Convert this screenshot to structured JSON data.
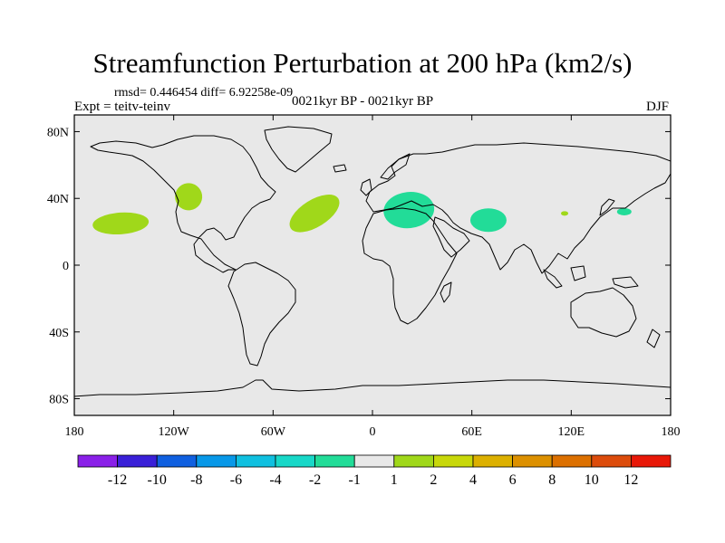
{
  "title": "Streamfunction Perturbation at 200 hPa (km2/s)",
  "stats": "rmsd= 0.446454 diff= 6.92258e-09",
  "experiment": "Expt = teitv-teinv",
  "period": "0021kyr BP - 0021kyr BP",
  "season": "DJF",
  "map": {
    "projection": "cylindrical equidistant",
    "lon_range": [
      -180,
      180
    ],
    "lat_range": [
      -90,
      90
    ],
    "background_color": "#e8e8e8",
    "lat_ticks": [
      {
        "value": 80,
        "label": "80N"
      },
      {
        "value": 40,
        "label": "40N"
      },
      {
        "value": 0,
        "label": "0"
      },
      {
        "value": -40,
        "label": "40S"
      },
      {
        "value": -80,
        "label": "80S"
      }
    ],
    "lon_ticks": [
      {
        "value": -180,
        "label": "180"
      },
      {
        "value": -120,
        "label": "120W"
      },
      {
        "value": -60,
        "label": "60W"
      },
      {
        "value": 0,
        "label": "0"
      },
      {
        "value": 60,
        "label": "60E"
      },
      {
        "value": 120,
        "label": "120E"
      },
      {
        "value": 180,
        "label": "180"
      }
    ],
    "anomalies": [
      {
        "name": "north-pacific",
        "lon": -152,
        "lat": 25,
        "value": 1.5,
        "color": "#a0d81a"
      },
      {
        "name": "western-north-america",
        "lon": -111,
        "lat": 41,
        "value": 1.5,
        "color": "#a0d81a"
      },
      {
        "name": "north-atlantic",
        "lon": -35,
        "lat": 31,
        "value": 1.5,
        "color": "#a0d81a"
      },
      {
        "name": "north-africa-mediterranean",
        "lon": 22,
        "lat": 33,
        "value": -1.5,
        "color": "#22dc98"
      },
      {
        "name": "arabian-sea-india",
        "lon": 70,
        "lat": 27,
        "value": -1.5,
        "color": "#22dc98"
      },
      {
        "name": "east-china",
        "lon": 116,
        "lat": 31,
        "value": 1.5,
        "color": "#a0d81a"
      },
      {
        "name": "north-west-pacific",
        "lon": 152,
        "lat": 32,
        "value": -1.5,
        "color": "#22dc98"
      }
    ]
  },
  "colorbar": {
    "colors": [
      "#8a20e8",
      "#3a20d8",
      "#1060e0",
      "#0898e8",
      "#10c0e0",
      "#18d8c8",
      "#22dc98",
      "#e8e8e8",
      "#a0d81a",
      "#c8d80a",
      "#dcb000",
      "#dc9000",
      "#dc7000",
      "#dc4c0c",
      "#e81808"
    ],
    "labels": [
      "-12",
      "-10",
      "-8",
      "-6",
      "-4",
      "-2",
      "-1",
      "1",
      "2",
      "4",
      "6",
      "8",
      "10",
      "12"
    ]
  }
}
